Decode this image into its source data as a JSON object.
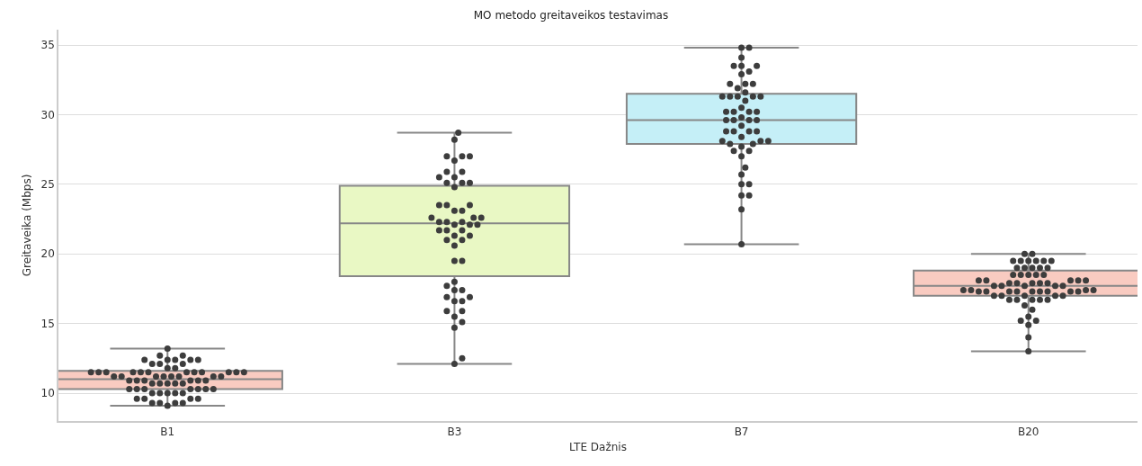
{
  "chart_data": {
    "type": "box",
    "title": "MO metodo greitaveikos testavimas",
    "xlabel": "LTE Dažnis",
    "ylabel": "Greitaveika (Mbps)",
    "categories": [
      "B1",
      "B3",
      "B7",
      "B20"
    ],
    "colors": [
      "#f9cbc1",
      "#e9f8c4",
      "#c5eff7",
      "#f9cbc1"
    ],
    "boxes": [
      {
        "low": 9.1,
        "q1": 10.3,
        "median": 11.0,
        "q3": 11.6,
        "high": 13.2
      },
      {
        "low": 12.1,
        "q1": 18.4,
        "median": 22.2,
        "q3": 24.9,
        "high": 28.7
      },
      {
        "low": 20.7,
        "q1": 27.9,
        "median": 29.6,
        "q3": 31.5,
        "high": 34.8
      },
      {
        "low": 13.0,
        "q1": 17.0,
        "median": 17.7,
        "q3": 18.8,
        "high": 20.0
      }
    ],
    "series": [
      {
        "type": "scatter",
        "color": "#3d3d3d",
        "x": [
          "B1",
          "B1",
          "B1",
          "B1",
          "B1",
          "B1",
          "B1",
          "B1",
          "B1",
          "B1",
          "B1",
          "B1",
          "B1",
          "B1",
          "B1",
          "B1",
          "B1",
          "B1",
          "B1",
          "B1",
          "B1",
          "B1",
          "B1",
          "B1",
          "B1",
          "B1",
          "B1",
          "B1",
          "B1",
          "B1",
          "B1",
          "B1",
          "B1",
          "B1",
          "B1",
          "B1",
          "B1",
          "B1",
          "B1",
          "B1",
          "B1",
          "B1",
          "B1",
          "B1",
          "B1",
          "B1",
          "B1",
          "B1",
          "B1",
          "B1",
          "B1",
          "B1",
          "B1",
          "B1",
          "B1",
          "B1",
          "B1",
          "B1",
          "B1",
          "B1",
          "B1",
          "B1",
          "B1",
          "B1",
          "B1"
        ],
        "values": [
          13.2,
          12.7,
          12.7,
          12.4,
          12.4,
          12.4,
          12.4,
          12.4,
          12.1,
          12.1,
          12.1,
          11.8,
          11.8,
          11.5,
          11.5,
          11.5,
          11.5,
          11.5,
          11.5,
          11.5,
          11.5,
          11.5,
          11.5,
          11.5,
          11.5,
          11.2,
          11.2,
          11.2,
          11.2,
          11.2,
          11.2,
          11.2,
          11.2,
          10.9,
          10.9,
          10.9,
          10.9,
          10.9,
          10.9,
          10.7,
          10.7,
          10.7,
          10.7,
          10.7,
          10.3,
          10.3,
          10.3,
          10.3,
          10.3,
          10.3,
          10.3,
          10.0,
          10.0,
          10.0,
          10.0,
          10.0,
          9.6,
          9.6,
          9.6,
          9.6,
          9.3,
          9.3,
          9.3,
          9.3,
          9.1
        ]
      },
      {
        "type": "scatter",
        "color": "#3d3d3d",
        "x": [
          "B3",
          "B3",
          "B3",
          "B3",
          "B3",
          "B3",
          "B3",
          "B3",
          "B3",
          "B3",
          "B3",
          "B3",
          "B3",
          "B3",
          "B3",
          "B3",
          "B3",
          "B3",
          "B3",
          "B3",
          "B3",
          "B3",
          "B3",
          "B3",
          "B3",
          "B3",
          "B3",
          "B3",
          "B3",
          "B3",
          "B3",
          "B3",
          "B3",
          "B3",
          "B3",
          "B3",
          "B3",
          "B3",
          "B3",
          "B3",
          "B3",
          "B3",
          "B3",
          "B3",
          "B3",
          "B3",
          "B3",
          "B3",
          "B3",
          "B3",
          "B3",
          "B3",
          "B3"
        ],
        "values": [
          28.7,
          28.2,
          27.0,
          27.0,
          27.0,
          26.7,
          25.9,
          25.9,
          25.5,
          25.5,
          25.1,
          25.1,
          25.1,
          24.8,
          23.5,
          23.5,
          23.5,
          23.1,
          23.1,
          22.6,
          22.6,
          22.6,
          22.3,
          22.3,
          22.3,
          22.1,
          22.1,
          22.1,
          21.7,
          21.7,
          21.7,
          21.3,
          21.3,
          21.0,
          21.0,
          20.6,
          19.5,
          19.5,
          18.0,
          17.7,
          17.4,
          17.4,
          16.9,
          16.9,
          16.6,
          16.6,
          15.9,
          15.9,
          15.5,
          15.1,
          14.7,
          12.5,
          12.1
        ]
      },
      {
        "type": "scatter",
        "color": "#3d3d3d",
        "x": [
          "B7",
          "B7",
          "B7",
          "B7",
          "B7",
          "B7",
          "B7",
          "B7",
          "B7",
          "B7",
          "B7",
          "B7",
          "B7",
          "B7",
          "B7",
          "B7",
          "B7",
          "B7",
          "B7",
          "B7",
          "B7",
          "B7",
          "B7",
          "B7",
          "B7",
          "B7",
          "B7",
          "B7",
          "B7",
          "B7",
          "B7",
          "B7",
          "B7",
          "B7",
          "B7",
          "B7",
          "B7",
          "B7",
          "B7",
          "B7",
          "B7",
          "B7",
          "B7",
          "B7",
          "B7",
          "B7",
          "B7",
          "B7",
          "B7",
          "B7",
          "B7",
          "B7"
        ],
        "values": [
          34.8,
          34.8,
          34.1,
          33.5,
          33.5,
          33.5,
          33.1,
          32.9,
          32.2,
          32.2,
          32.2,
          31.9,
          31.6,
          31.3,
          31.3,
          31.3,
          31.3,
          31.3,
          31.0,
          30.5,
          30.2,
          30.2,
          30.2,
          30.2,
          29.8,
          29.6,
          29.6,
          29.6,
          29.6,
          29.2,
          28.8,
          28.8,
          28.8,
          28.8,
          28.4,
          28.1,
          28.1,
          28.1,
          27.9,
          27.9,
          27.7,
          27.4,
          27.4,
          27.0,
          26.2,
          25.7,
          25.0,
          25.0,
          24.2,
          24.2,
          23.2,
          20.7
        ]
      },
      {
        "type": "scatter",
        "color": "#3d3d3d",
        "x": [
          "B20",
          "B20",
          "B20",
          "B20",
          "B20",
          "B20",
          "B20",
          "B20",
          "B20",
          "B20",
          "B20",
          "B20",
          "B20",
          "B20",
          "B20",
          "B20",
          "B20",
          "B20",
          "B20",
          "B20",
          "B20",
          "B20",
          "B20",
          "B20",
          "B20",
          "B20",
          "B20",
          "B20",
          "B20",
          "B20",
          "B20",
          "B20",
          "B20",
          "B20",
          "B20",
          "B20",
          "B20",
          "B20",
          "B20",
          "B20",
          "B20",
          "B20",
          "B20",
          "B20",
          "B20",
          "B20",
          "B20",
          "B20",
          "B20",
          "B20",
          "B20",
          "B20",
          "B20",
          "B20",
          "B20",
          "B20",
          "B20",
          "B20",
          "B20",
          "B20",
          "B20",
          "B20",
          "B20",
          "B20"
        ],
        "values": [
          20.0,
          20.0,
          19.5,
          19.5,
          19.5,
          19.5,
          19.5,
          19.5,
          19.0,
          19.0,
          19.0,
          19.0,
          19.0,
          18.5,
          18.5,
          18.5,
          18.5,
          18.5,
          18.1,
          18.1,
          18.1,
          18.1,
          18.1,
          17.9,
          17.9,
          17.9,
          17.9,
          17.9,
          17.7,
          17.7,
          17.7,
          17.7,
          17.7,
          17.4,
          17.4,
          17.4,
          17.4,
          17.3,
          17.3,
          17.3,
          17.3,
          17.3,
          17.3,
          17.3,
          17.3,
          17.3,
          17.0,
          17.0,
          17.0,
          17.0,
          17.0,
          16.7,
          16.7,
          16.7,
          16.7,
          16.7,
          16.3,
          16.0,
          15.5,
          15.2,
          15.2,
          14.9,
          14.0,
          13.0
        ]
      }
    ],
    "marker": "circle",
    "ylim": [
      8.0,
      36.1
    ],
    "yticks": [
      10,
      15,
      20,
      25,
      30,
      35
    ],
    "grid": "y"
  }
}
